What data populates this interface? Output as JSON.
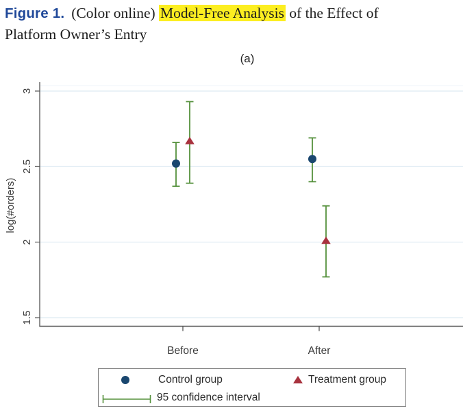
{
  "caption": {
    "figure_label": "Figure 1.",
    "pre_highlight": "(Color online)",
    "highlight": "Model-Free Analysis",
    "post_highlight": " of the Effect of",
    "line2": "Platform Owner’s Entry"
  },
  "panel_label": "(a)",
  "chart_data": {
    "type": "scatter",
    "title": "(a)",
    "xlabel": "",
    "ylabel": "log(#orders)",
    "categories": [
      "Before",
      "After"
    ],
    "yticks": [
      1.5,
      2,
      2.5,
      3
    ],
    "ylim": [
      1.45,
      3.06
    ],
    "grid": true,
    "legend_position": "bottom",
    "ci_legend_label": "95 confidence interval",
    "ci_color": "#55913c",
    "series": [
      {
        "name": "Control group",
        "marker": "circle",
        "color": "#1a476f",
        "values": [
          {
            "x": "Before",
            "y": 2.52,
            "ci_low": 2.37,
            "ci_high": 2.66
          },
          {
            "x": "After",
            "y": 2.55,
            "ci_low": 2.4,
            "ci_high": 2.69
          }
        ]
      },
      {
        "name": "Treatment group",
        "marker": "triangle",
        "color": "#a8323e",
        "values": [
          {
            "x": "Before",
            "y": 2.67,
            "ci_low": 2.39,
            "ci_high": 2.93
          },
          {
            "x": "After",
            "y": 2.01,
            "ci_low": 1.77,
            "ci_high": 2.24
          }
        ]
      }
    ]
  }
}
